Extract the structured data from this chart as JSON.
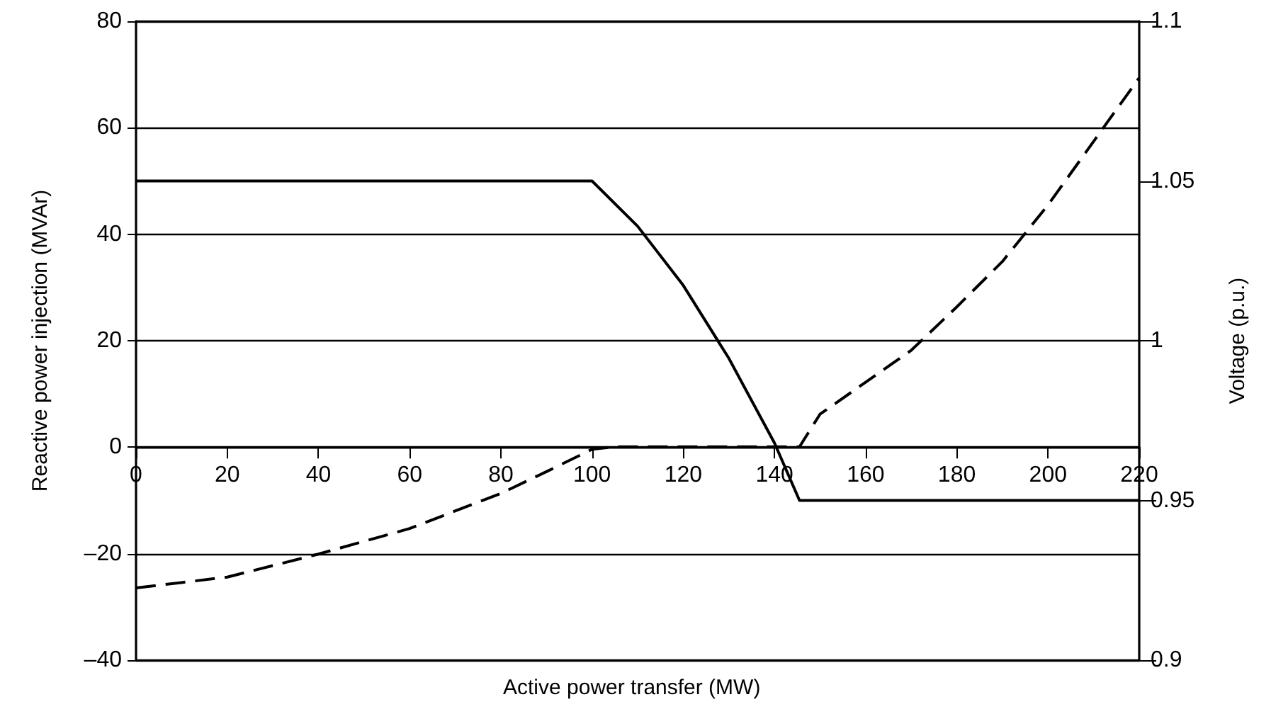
{
  "chart_data": {
    "type": "line",
    "xlabel": "Active power transfer (MW)",
    "ylabel": "Reactive power injection (MVAr)",
    "y2label": "Voltage (p.u.)",
    "series": [
      {
        "color": "#000000",
        "line_style": "solid",
        "x": [
          0,
          100,
          110,
          120,
          130,
          140,
          145.5,
          220
        ],
        "values": [
          50,
          50,
          41.5,
          30.4,
          16.7,
          0.8,
          -10,
          -10
        ]
      },
      {
        "color": "#000000",
        "line_style": "dashed",
        "axis": "y2",
        "x": [
          0,
          20,
          40,
          60,
          80,
          90,
          100,
          105,
          145.5,
          150,
          160,
          170,
          180,
          190,
          200,
          210,
          220
        ],
        "values": [
          0.9226,
          0.926,
          0.9332,
          0.9412,
          0.9522,
          0.959,
          0.966,
          0.9668,
          0.9668,
          0.977,
          0.987,
          0.997,
          1.0106,
          1.0248,
          1.0425,
          1.0624,
          1.0823
        ]
      }
    ],
    "xlim": [
      0,
      220
    ],
    "xticks": [
      0,
      20,
      40,
      60,
      80,
      100,
      120,
      140,
      160,
      180,
      200,
      220
    ],
    "ylim": [
      -40,
      80
    ],
    "yticks": [
      {
        "value": -40,
        "label": "–40"
      },
      {
        "value": -20,
        "label": "–20"
      },
      0,
      20,
      40,
      60,
      80
    ],
    "y2lim": [
      0.9,
      1.1
    ],
    "y2ticks": [
      0.9,
      0.95,
      1,
      1.05,
      1.1
    ],
    "marker": "none",
    "grid": "y"
  }
}
